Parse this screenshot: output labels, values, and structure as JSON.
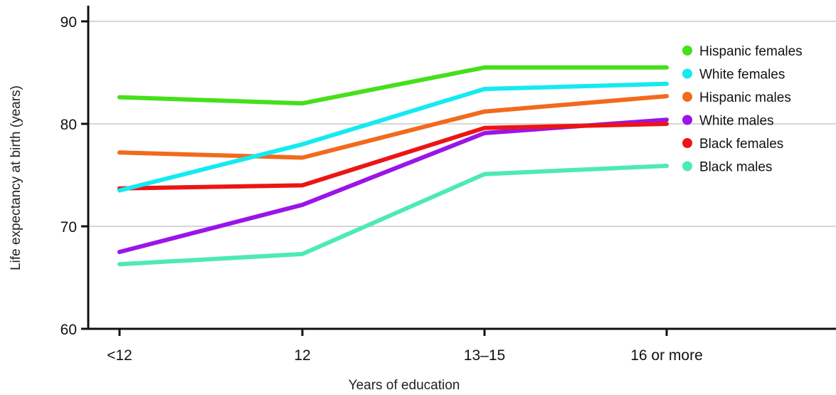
{
  "chart_data": {
    "type": "line",
    "title": "",
    "xlabel": "Years of education",
    "ylabel": "Life expectancy at birth (years)",
    "categories": [
      "<12",
      "12",
      "13–15",
      "16 or more"
    ],
    "ylim": [
      60,
      90
    ],
    "yticks": [
      "60",
      "70",
      "80",
      "90"
    ],
    "grid": "horizontal",
    "legend_position": "right",
    "series": [
      {
        "name": "Hispanic females",
        "color": "#44e01a",
        "values": [
          82.6,
          82.0,
          85.5,
          85.5
        ]
      },
      {
        "name": "White females",
        "color": "#14eaf2",
        "values": [
          73.5,
          78.0,
          83.4,
          83.9
        ]
      },
      {
        "name": "Hispanic males",
        "color": "#f26a1c",
        "values": [
          77.2,
          76.7,
          81.2,
          82.7
        ]
      },
      {
        "name": "White males",
        "color": "#9b14e8",
        "values": [
          67.5,
          72.1,
          79.1,
          80.4
        ]
      },
      {
        "name": "Black females",
        "color": "#ec1515",
        "values": [
          73.7,
          74.0,
          79.6,
          80.0
        ]
      },
      {
        "name": "Black males",
        "color": "#4eeab4",
        "values": [
          66.3,
          67.3,
          75.1,
          75.9
        ]
      }
    ]
  }
}
